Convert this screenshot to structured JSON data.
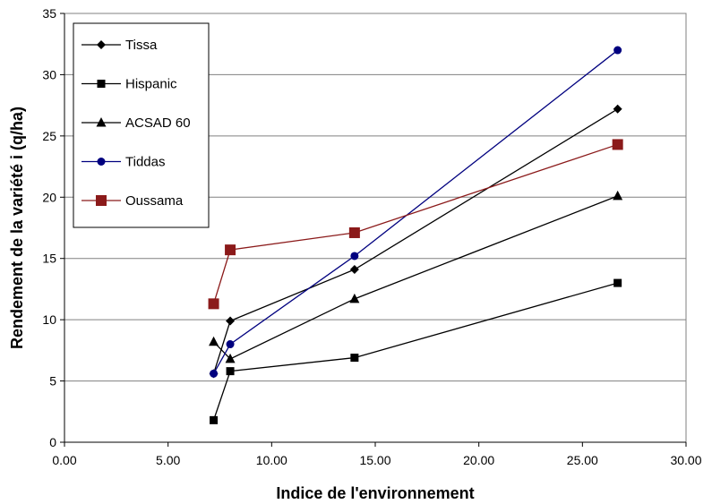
{
  "chart_data": {
    "type": "line",
    "title": "",
    "xlabel": "Indice de l'environnement",
    "ylabel": "Rendement de la variété i (q/ha)",
    "xlim": [
      0,
      30
    ],
    "ylim": [
      0,
      35
    ],
    "x_ticks": [
      0,
      5,
      10,
      15,
      20,
      25,
      30
    ],
    "x_tick_labels": [
      "0.00",
      "5.00",
      "10.00",
      "15.00",
      "20.00",
      "25.00",
      "30.00"
    ],
    "y_ticks": [
      0,
      5,
      10,
      15,
      20,
      25,
      30,
      35
    ],
    "y_tick_labels": [
      "0",
      "5",
      "10",
      "15",
      "20",
      "25",
      "30",
      "35"
    ],
    "grid": "horizontal",
    "legend_position": "top-left",
    "series": [
      {
        "name": "Tissa",
        "color": "#000000",
        "marker": "diamond",
        "x": [
          7.2,
          8.0,
          14.0,
          26.7
        ],
        "y": [
          5.6,
          9.9,
          14.1,
          27.2
        ]
      },
      {
        "name": "Hispanic",
        "color": "#000000",
        "marker": "square",
        "x": [
          7.2,
          8.0,
          14.0,
          26.7
        ],
        "y": [
          1.8,
          5.8,
          6.9,
          13.0
        ]
      },
      {
        "name": "ACSAD 60",
        "color": "#000000",
        "marker": "triangle",
        "x": [
          7.2,
          8.0,
          14.0,
          26.7
        ],
        "y": [
          8.2,
          6.8,
          11.7,
          20.1
        ]
      },
      {
        "name": "Tiddas",
        "color": "#00007f",
        "marker": "circle",
        "x": [
          7.2,
          8.0,
          14.0,
          26.7
        ],
        "y": [
          5.6,
          8.0,
          15.2,
          32.0
        ]
      },
      {
        "name": "Oussama",
        "color": "#8b1a1a",
        "marker": "square-large",
        "x": [
          7.2,
          8.0,
          14.0,
          26.7
        ],
        "y": [
          11.3,
          15.7,
          17.1,
          24.3
        ]
      }
    ]
  }
}
